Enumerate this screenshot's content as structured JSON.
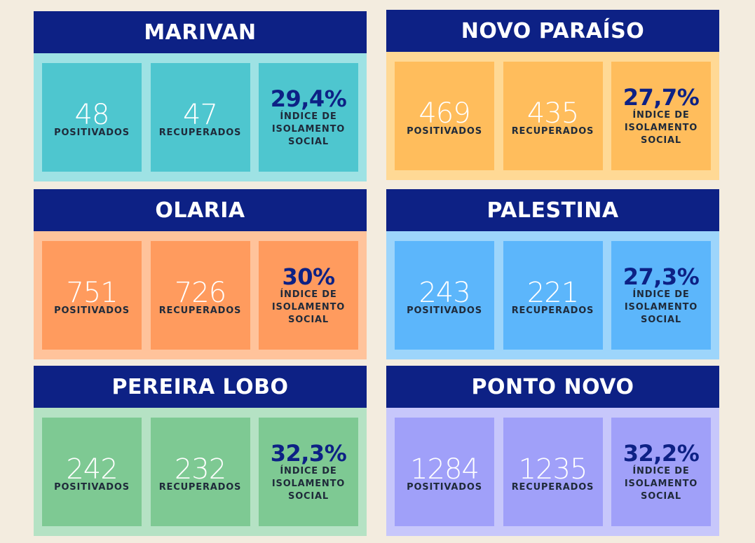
{
  "labels": {
    "positivados": "POSITIVADOS",
    "recuperados": "RECUPERADOS",
    "indice_line1": "ÍNDICE DE",
    "indice_line2": "ISOLAMENTO",
    "indice_line3": "SOCIAL"
  },
  "neighborhoods": [
    {
      "name": "MARIVAN",
      "positivados": "48",
      "recuperados": "47",
      "isolamento": "29,4%",
      "body_color": "#9ee2e4",
      "box_color": "#4ec6cf"
    },
    {
      "name": "NOVO PARAÍSO",
      "positivados": "469",
      "recuperados": "435",
      "isolamento": "27,7%",
      "body_color": "#ffd995",
      "box_color": "#ffbd5c"
    },
    {
      "name": "OLARIA",
      "positivados": "751",
      "recuperados": "726",
      "isolamento": "30%",
      "body_color": "#ffc39b",
      "box_color": "#ff9b5e"
    },
    {
      "name": "PALESTINA",
      "positivados": "243",
      "recuperados": "221",
      "isolamento": "27,3%",
      "body_color": "#9dd5fb",
      "box_color": "#5cb6fb"
    },
    {
      "name": "PEREIRA LOBO",
      "positivados": "242",
      "recuperados": "232",
      "isolamento": "32,3%",
      "body_color": "#b5e2c4",
      "box_color": "#7ec993"
    },
    {
      "name": "PONTO NOVO",
      "positivados": "1284",
      "recuperados": "1235",
      "isolamento": "32,2%",
      "body_color": "#c7c7fb",
      "box_color": "#a0a0f9"
    }
  ]
}
